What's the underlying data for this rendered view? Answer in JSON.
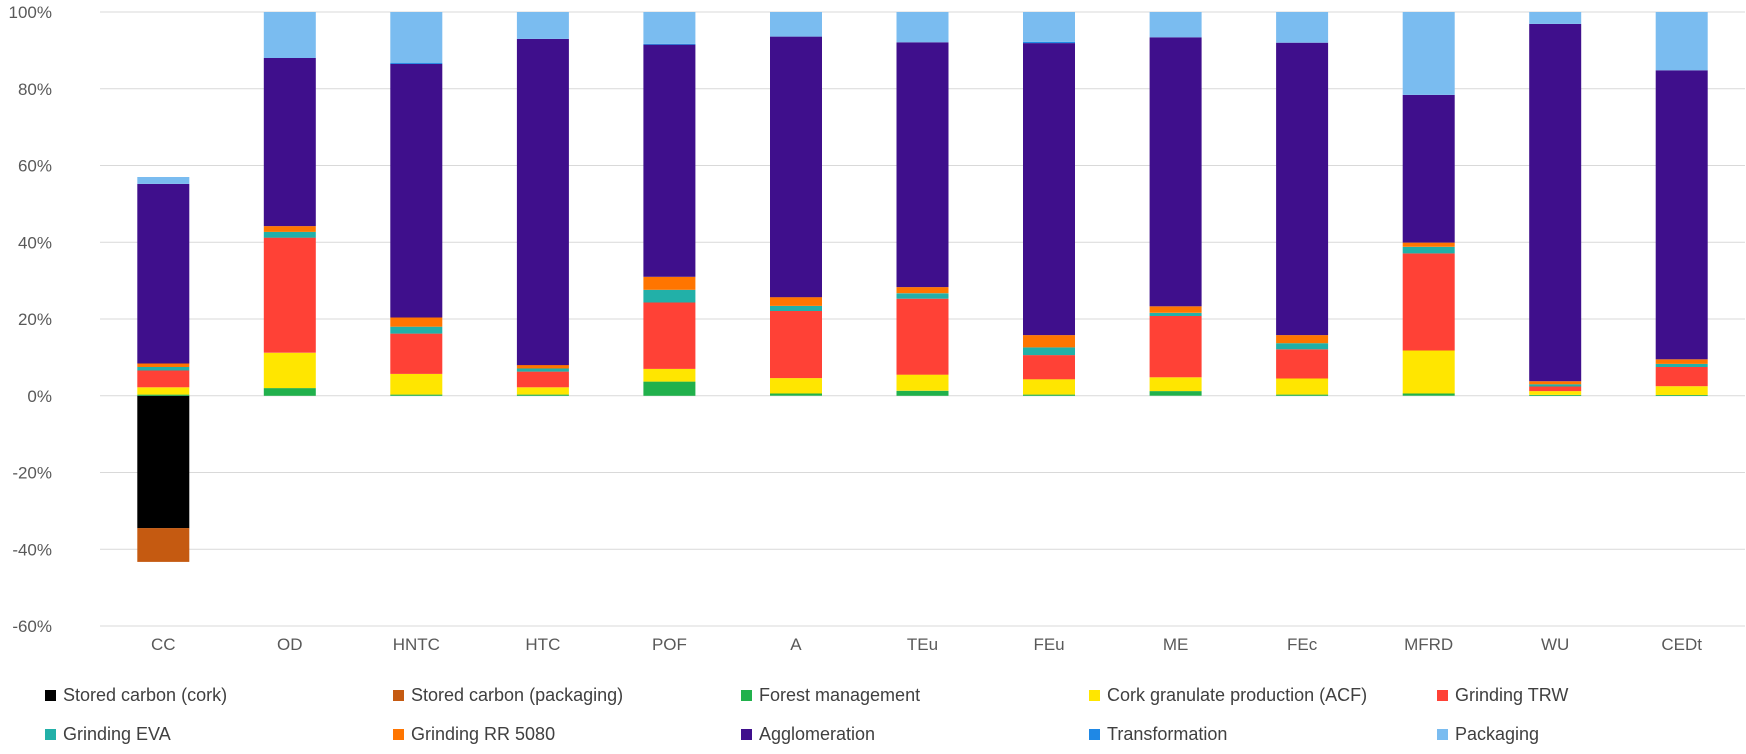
{
  "chart_data": {
    "type": "bar",
    "stacked": true,
    "categories": [
      "CC",
      "OD",
      "HNTC",
      "HTC",
      "POF",
      "A",
      "TEu",
      "FEu",
      "ME",
      "FEc",
      "MFRD",
      "WU",
      "CEDt"
    ],
    "ylim": [
      -60,
      100
    ],
    "yticks": [
      100,
      80,
      60,
      40,
      20,
      0,
      -20,
      -40,
      -60
    ],
    "ytick_labels": [
      "100%",
      "80%",
      "60%",
      "40%",
      "20%",
      "0%",
      "-20%",
      "-40%",
      "-60%"
    ],
    "grid": true,
    "legend_position": "bottom",
    "series": [
      {
        "name": "Stored carbon (cork)",
        "color": "#000000",
        "values": [
          -34.5,
          0,
          0,
          0,
          0,
          0,
          0,
          0,
          0,
          0,
          0,
          0,
          0
        ]
      },
      {
        "name": "Stored carbon (packaging)",
        "color": "#c55a11",
        "values": [
          -8.8,
          0,
          0,
          0,
          0,
          0,
          0,
          0,
          0,
          0,
          0,
          0,
          0
        ]
      },
      {
        "name": "Forest management",
        "color": "#21b14c",
        "values": [
          0.3,
          2.0,
          0.3,
          0.3,
          3.7,
          0.6,
          1.3,
          0.3,
          1.2,
          0.3,
          0.6,
          0.2,
          0.2
        ]
      },
      {
        "name": "Cork granulate production (ACF)",
        "color": "#ffe600",
        "values": [
          1.9,
          9.2,
          5.4,
          1.9,
          3.3,
          4.0,
          4.2,
          4.0,
          3.6,
          4.2,
          11.2,
          1.0,
          2.3
        ]
      },
      {
        "name": "Grinding TRW",
        "color": "#ff4136",
        "values": [
          4.4,
          30.0,
          10.5,
          4.1,
          17.3,
          17.5,
          19.8,
          6.3,
          16.0,
          7.6,
          25.3,
          1.2,
          5.0
        ]
      },
      {
        "name": "Grinding EVA",
        "color": "#22b0a8",
        "values": [
          0.9,
          1.5,
          1.8,
          0.8,
          3.3,
          1.3,
          1.4,
          2.0,
          0.8,
          1.6,
          1.7,
          0.6,
          0.8
        ]
      },
      {
        "name": "Grinding RR 5080",
        "color": "#ff7500",
        "values": [
          0.9,
          1.5,
          2.4,
          0.9,
          3.4,
          2.3,
          1.6,
          3.2,
          1.7,
          2.1,
          1.1,
          0.8,
          1.2
        ]
      },
      {
        "name": "Agglomeration",
        "color": "#3f0f8c",
        "values": [
          46.8,
          43.8,
          66.1,
          85.0,
          60.5,
          67.9,
          63.8,
          76.1,
          70.1,
          76.2,
          38.5,
          93.1,
          75.3
        ]
      },
      {
        "name": "Transformation",
        "color": "#1f88e5",
        "values": [
          0,
          0,
          0.3,
          0,
          0.2,
          0,
          0,
          0.3,
          0,
          0,
          0,
          0,
          0
        ]
      },
      {
        "name": "Packaging",
        "color": "#7abcf0",
        "values": [
          1.8,
          12.0,
          13.2,
          7.0,
          8.3,
          6.4,
          7.9,
          7.8,
          6.6,
          8.0,
          21.6,
          3.1,
          15.2
        ]
      }
    ]
  }
}
